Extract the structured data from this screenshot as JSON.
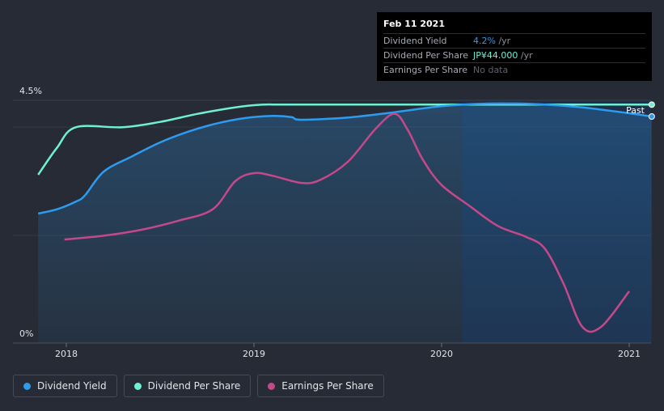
{
  "chart_data": {
    "type": "line",
    "y_axis": {
      "max_label": "4.5%",
      "min_label": "0%"
    },
    "x_ticks": [
      "2018",
      "2019",
      "2020",
      "2021"
    ],
    "past_label": "Past",
    "series": [
      {
        "name": "Dividend Yield",
        "color": "#2d9cf0",
        "unit": "%",
        "points": [
          [
            2017.85,
            2.4
          ],
          [
            2017.95,
            2.48
          ],
          [
            2018.05,
            2.62
          ],
          [
            2018.1,
            2.74
          ],
          [
            2018.2,
            3.18
          ],
          [
            2018.35,
            3.46
          ],
          [
            2018.5,
            3.72
          ],
          [
            2018.65,
            3.92
          ],
          [
            2018.8,
            4.07
          ],
          [
            2018.95,
            4.17
          ],
          [
            2019.1,
            4.21
          ],
          [
            2019.2,
            4.19
          ],
          [
            2019.25,
            4.14
          ],
          [
            2019.5,
            4.18
          ],
          [
            2019.75,
            4.28
          ],
          [
            2020.0,
            4.39
          ],
          [
            2020.25,
            4.44
          ],
          [
            2020.5,
            4.43
          ],
          [
            2020.75,
            4.37
          ],
          [
            2021.0,
            4.26
          ],
          [
            2021.12,
            4.2
          ]
        ]
      },
      {
        "name": "Dividend Per Share",
        "color": "#6ff0d3",
        "points": [
          [
            2017.85,
            3.12
          ],
          [
            2017.95,
            3.62
          ],
          [
            2018.05,
            4.0
          ],
          [
            2018.3,
            4.0
          ],
          [
            2018.5,
            4.1
          ],
          [
            2018.7,
            4.25
          ],
          [
            2018.9,
            4.37
          ],
          [
            2019.05,
            4.42
          ],
          [
            2019.2,
            4.42
          ],
          [
            2020.0,
            4.42
          ],
          [
            2021.12,
            4.42
          ]
        ]
      },
      {
        "name": "Earnings Per Share",
        "color": "#c4488a",
        "points": [
          [
            2017.99,
            1.92
          ],
          [
            2018.2,
            1.99
          ],
          [
            2018.4,
            2.1
          ],
          [
            2018.6,
            2.27
          ],
          [
            2018.78,
            2.48
          ],
          [
            2018.9,
            3.0
          ],
          [
            2019.0,
            3.15
          ],
          [
            2019.1,
            3.1
          ],
          [
            2019.25,
            2.97
          ],
          [
            2019.35,
            3.02
          ],
          [
            2019.5,
            3.36
          ],
          [
            2019.65,
            3.98
          ],
          [
            2019.75,
            4.25
          ],
          [
            2019.82,
            3.95
          ],
          [
            2019.9,
            3.4
          ],
          [
            2020.0,
            2.93
          ],
          [
            2020.15,
            2.54
          ],
          [
            2020.3,
            2.17
          ],
          [
            2020.45,
            1.97
          ],
          [
            2020.55,
            1.75
          ],
          [
            2020.65,
            1.1
          ],
          [
            2020.75,
            0.3
          ],
          [
            2020.85,
            0.3
          ],
          [
            2021.0,
            0.96
          ]
        ]
      }
    ]
  },
  "tooltip": {
    "date": "Feb 11 2021",
    "rows": [
      {
        "label": "Dividend Yield",
        "value": "4.2%",
        "suffix": " /yr"
      },
      {
        "label": "Dividend Per Share",
        "value": "JP¥44.000",
        "suffix": " /yr"
      },
      {
        "label": "Earnings Per Share",
        "value": "No data"
      }
    ]
  },
  "legend": [
    {
      "label": "Dividend Yield",
      "color": "#2d9cf0"
    },
    {
      "label": "Dividend Per Share",
      "color": "#6ff0d3"
    },
    {
      "label": "Earnings Per Share",
      "color": "#c4488a"
    }
  ]
}
